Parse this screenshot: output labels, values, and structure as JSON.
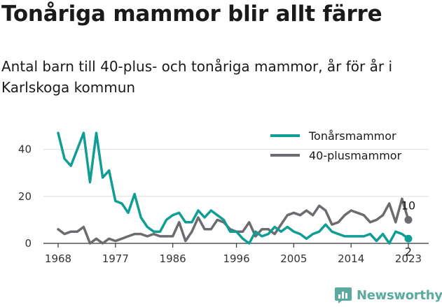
{
  "colors": {
    "teenage": "#0f9d94",
    "forty_plus": "#6b6b70",
    "grid": "#dddddd",
    "axis": "#333333",
    "logo": "#5aaaa0"
  },
  "logo": {
    "icon": "newsworthy-bar-chart-icon",
    "text": "Newsworthy"
  },
  "chart_data": {
    "type": "line",
    "title": "Tonåriga mammor blir allt färre",
    "subtitle": "Antal barn till 40-plus- och tonåriga mammor, år för år i Karlskoga kommun",
    "xlabel": "",
    "ylabel": "",
    "xlim": [
      1968,
      2023
    ],
    "ylim": [
      0,
      50
    ],
    "x_ticks": [
      1968,
      1977,
      1986,
      1996,
      2005,
      2014,
      2023
    ],
    "y_ticks": [
      0,
      20,
      40
    ],
    "grid": "horizontal",
    "legend": "top-right",
    "x": [
      1968,
      1969,
      1970,
      1971,
      1972,
      1973,
      1974,
      1975,
      1976,
      1977,
      1978,
      1979,
      1980,
      1981,
      1982,
      1983,
      1984,
      1985,
      1986,
      1987,
      1988,
      1989,
      1990,
      1991,
      1992,
      1993,
      1994,
      1995,
      1996,
      1997,
      1998,
      1999,
      2000,
      2001,
      2002,
      2003,
      2004,
      2005,
      2006,
      2007,
      2008,
      2009,
      2010,
      2011,
      2012,
      2013,
      2014,
      2015,
      2016,
      2017,
      2018,
      2019,
      2020,
      2021,
      2022,
      2023
    ],
    "series": [
      {
        "name": "Tonårsmammor",
        "values": [
          47,
          36,
          33,
          40,
          47,
          26,
          47,
          28,
          31,
          18,
          17,
          13,
          21,
          11,
          7,
          5,
          5,
          10,
          12,
          13,
          9,
          9,
          14,
          11,
          14,
          12,
          10,
          5,
          5,
          2,
          0,
          5,
          3,
          4,
          7,
          5,
          7,
          5,
          4,
          2,
          4,
          5,
          8,
          5,
          4,
          3,
          3,
          3,
          3,
          4,
          1,
          4,
          0,
          5,
          4,
          2
        ],
        "end_label": "2"
      },
      {
        "name": "40-plusmammor",
        "values": [
          6,
          4,
          5,
          5,
          7,
          0,
          2,
          0,
          2,
          1,
          2,
          3,
          4,
          4,
          3,
          4,
          3,
          3,
          3,
          9,
          1,
          5,
          11,
          6,
          6,
          10,
          9,
          6,
          5,
          5,
          9,
          3,
          6,
          6,
          4,
          8,
          12,
          13,
          12,
          14,
          12,
          16,
          14,
          8,
          9,
          12,
          14,
          13,
          12,
          9,
          10,
          12,
          17,
          9,
          19,
          10
        ],
        "end_label": "10"
      }
    ]
  }
}
